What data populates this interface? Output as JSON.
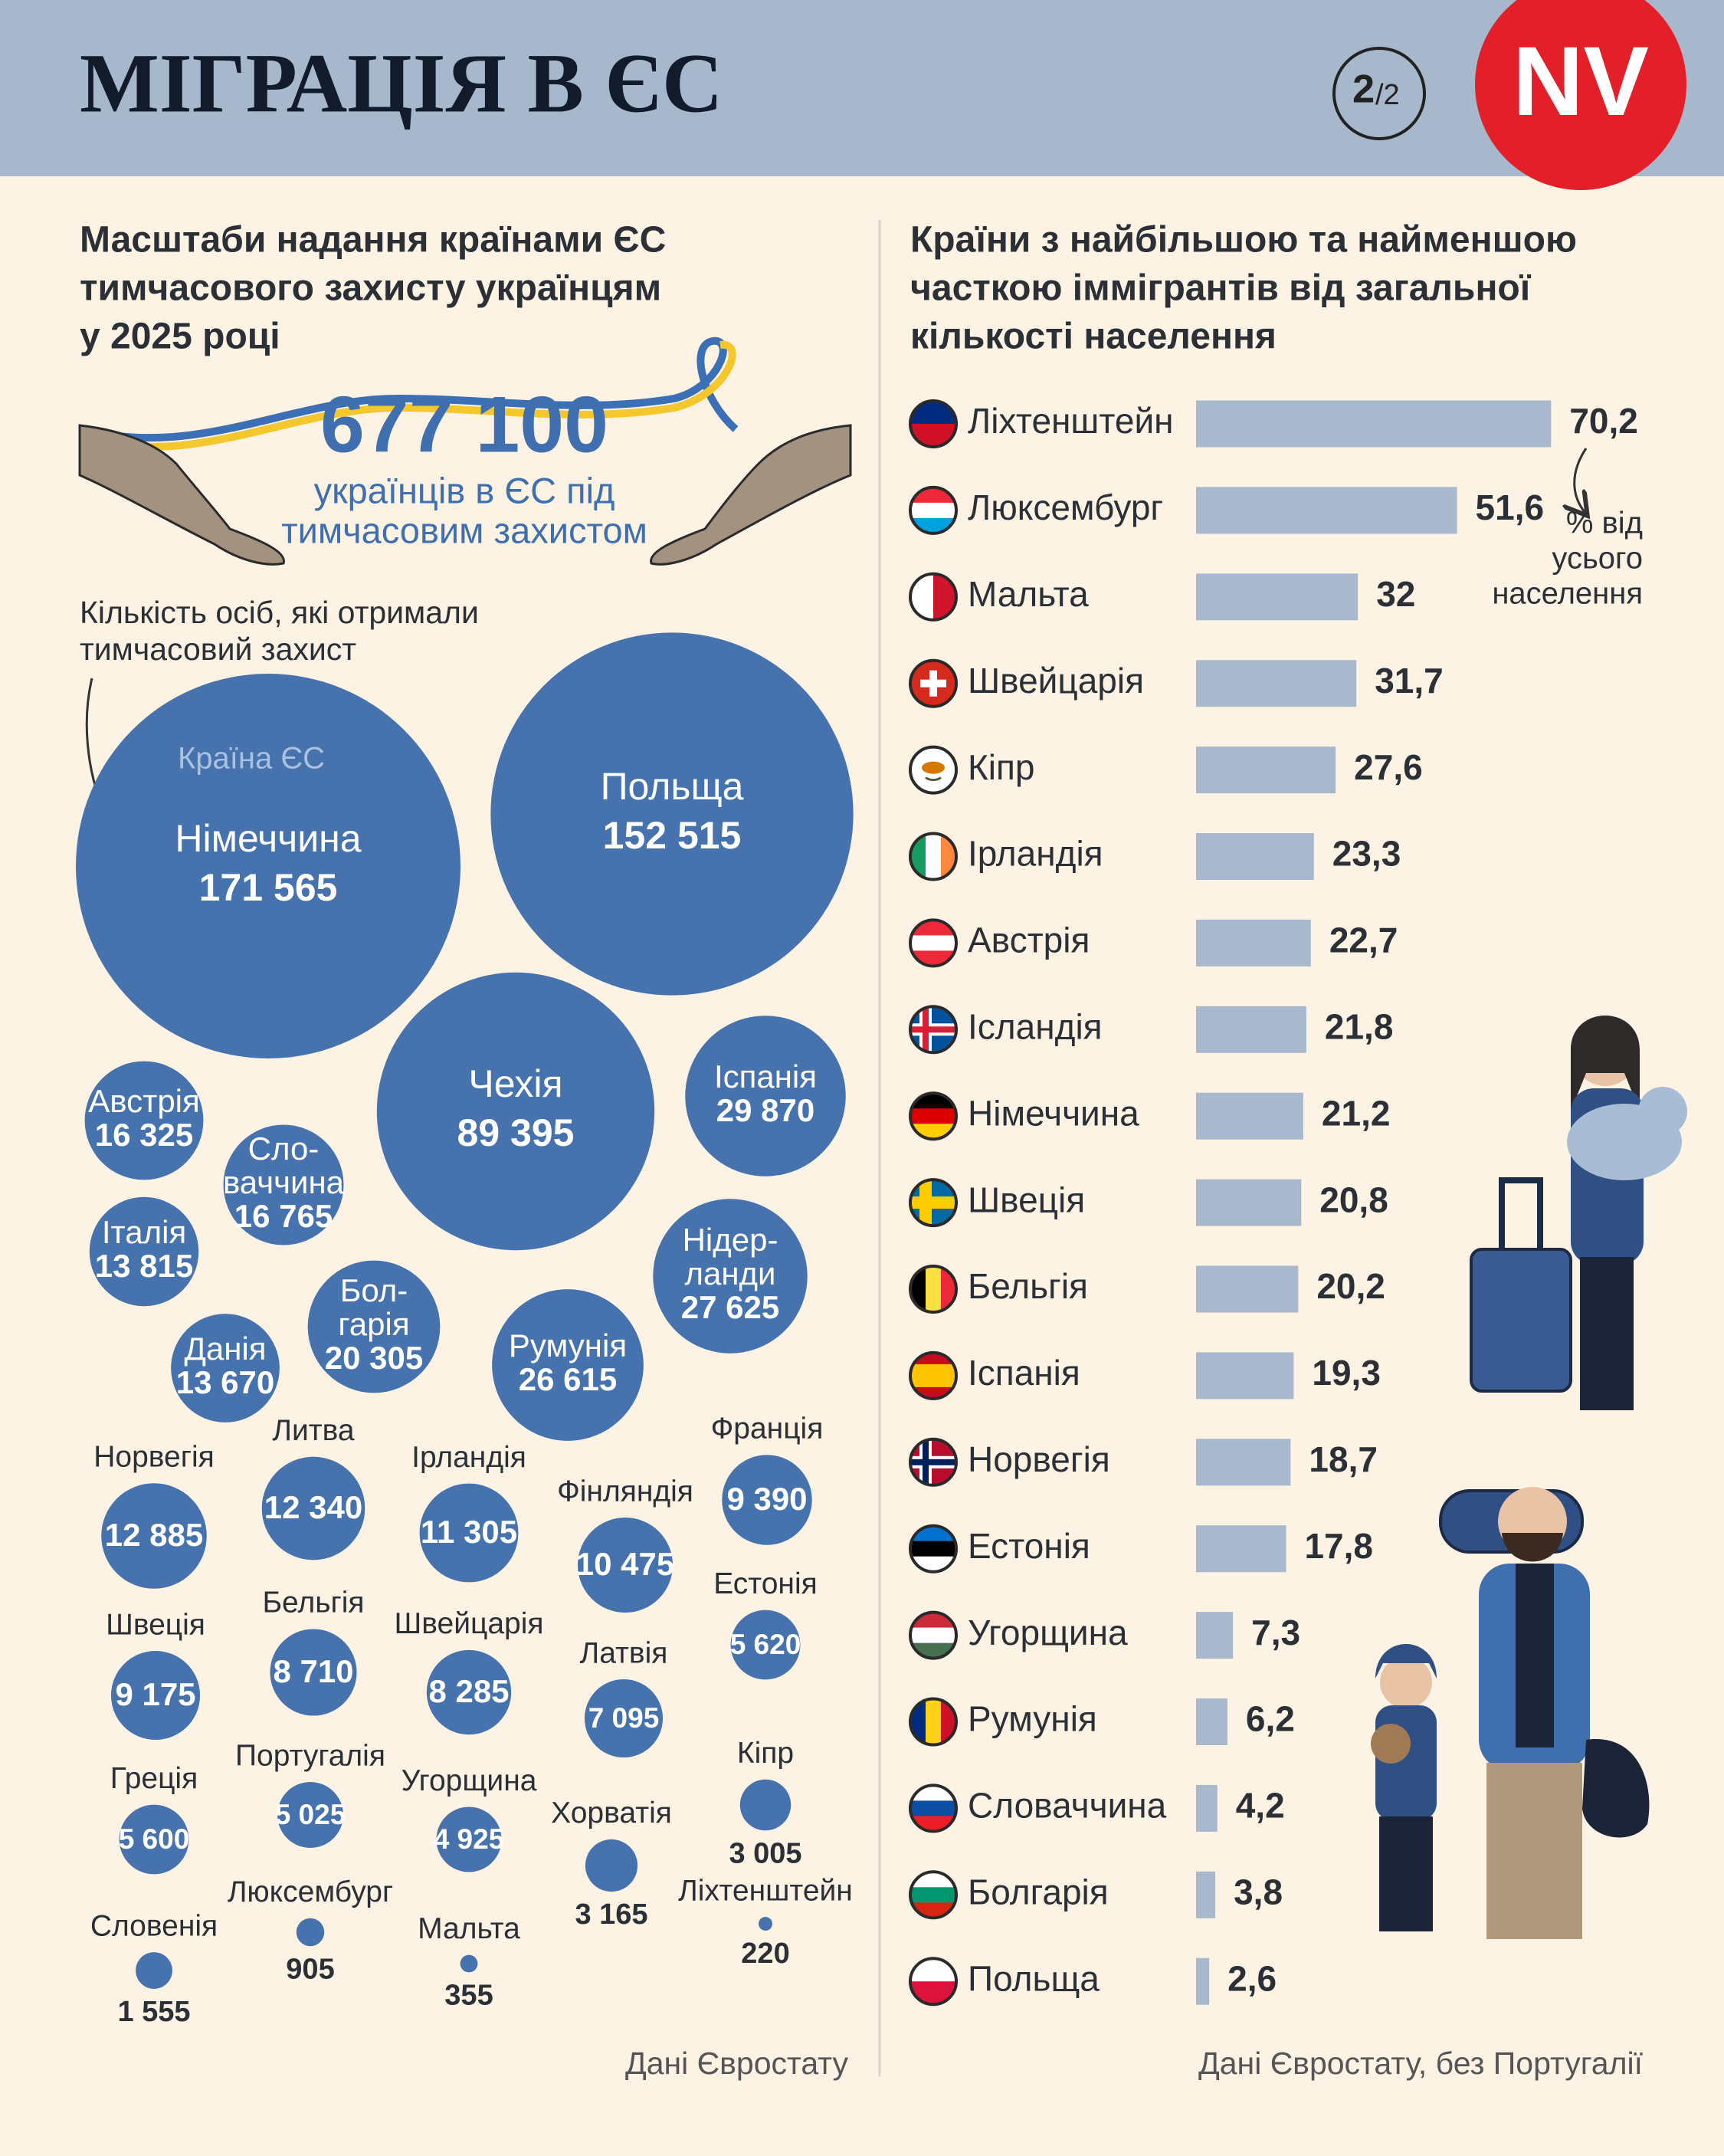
{
  "header": {
    "title": "МІГРАЦІЯ В ЄС",
    "page": "2",
    "pages": "/2",
    "logo": "NV"
  },
  "chart_data": [
    {
      "type": "bubble",
      "title_lines": [
        "Масштаби надання країнами ЄС",
        "тимчасового захисту українцям",
        "у 2025 році"
      ],
      "total": "677 100",
      "total_caption_lines": [
        "українців в ЄС під",
        "тимчасовим захистом"
      ],
      "note_lines": [
        "Кількість осіб, які отримали",
        "тимчасовий захист"
      ],
      "legend_label": "Країна ЄС",
      "categories": [
        "Німеччина",
        "Польща",
        "Чехія",
        "Іспанія",
        "Австрія",
        "Сло-ваччина",
        "Італія",
        "Нідер-ланди",
        "Бол-гарія",
        "Данія",
        "Румунія",
        "Норвегія",
        "Литва",
        "Ірландія",
        "Фінляндія",
        "Франція",
        "Швеція",
        "Бельгія",
        "Швейцарія",
        "Естонія",
        "Латвія",
        "Греція",
        "Португалія",
        "Угорщина",
        "Хорватія",
        "Кіпр",
        "Словенія",
        "Люксембург",
        "Мальта",
        "Ліхтенштейн"
      ],
      "values": [
        171565,
        152515,
        89395,
        29870,
        16325,
        16765,
        13815,
        27625,
        20305,
        13670,
        26615,
        12885,
        12340,
        11305,
        10475,
        9390,
        9175,
        8710,
        8285,
        5620,
        7095,
        5600,
        5025,
        4925,
        3165,
        3005,
        1555,
        905,
        355,
        220
      ],
      "value_labels": [
        "171 565",
        "152 515",
        "89 395",
        "29 870",
        "16 325",
        "16 765",
        "13 815",
        "27 625",
        "20 305",
        "13 670",
        "26 615",
        "12 885",
        "12 340",
        "11 305",
        "10 475",
        "9 390",
        "9 175",
        "8 710",
        "8 285",
        "5 620",
        "7 095",
        "5 600",
        "5 025",
        "4 925",
        "3 165",
        "3 005",
        "1 555",
        "905",
        "355",
        "220"
      ],
      "color": "#4673ad",
      "source": "Дані Євростату"
    },
    {
      "type": "bar",
      "orientation": "horizontal",
      "title_lines": [
        "Країни з найбільшою та найменшою",
        "часткою іммігрантів від загальної",
        "кількості населення"
      ],
      "categories": [
        "Ліхтенштейн",
        "Люксембург",
        "Мальта",
        "Швейцарія",
        "Кіпр",
        "Ірландія",
        "Австрія",
        "Ісландія",
        "Німеччина",
        "Швеція",
        "Бельгія",
        "Іспанія",
        "Норвегія",
        "Естонія",
        "Угорщина",
        "Румунія",
        "Словаччина",
        "Болгарія",
        "Польща"
      ],
      "values": [
        70.2,
        51.6,
        32,
        31.7,
        27.6,
        23.3,
        22.7,
        21.8,
        21.2,
        20.8,
        20.2,
        19.3,
        18.7,
        17.8,
        7.3,
        6.2,
        4.2,
        3.8,
        2.6
      ],
      "value_labels": [
        "70,2",
        "51,6",
        "32",
        "31,7",
        "27,6",
        "23,3",
        "22,7",
        "21,8",
        "21,2",
        "20,8",
        "20,2",
        "19,3",
        "18,7",
        "17,8",
        "7,3",
        "6,2",
        "4,2",
        "3,8",
        "2,6"
      ],
      "color": "#a9b9cd",
      "unit_note_lines": [
        "% від",
        "усього",
        "населення"
      ],
      "source": "Дані Євростату, без Португалії"
    }
  ]
}
